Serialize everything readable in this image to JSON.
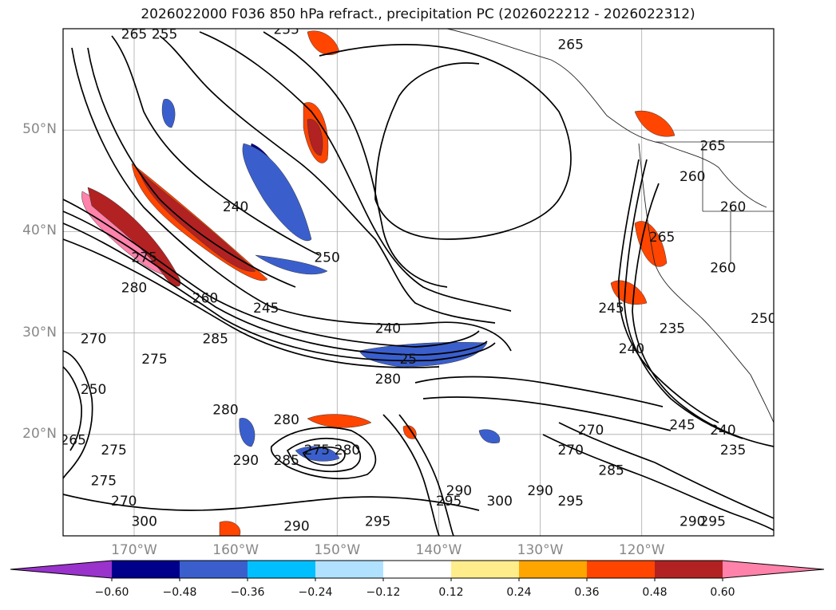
{
  "title": "2026022000 F036 850 hPa refract., precipitation PC (2026022212 - 2026022312)",
  "chart_data": {
    "type": "contour-map",
    "title": "2026022000 F036 850 hPa refract., precipitation PC (2026022212 - 2026022312)",
    "lon_ticks": [
      "170°W",
      "160°W",
      "150°W",
      "140°W",
      "130°W",
      "120°W"
    ],
    "lat_ticks": [
      "50°N",
      "40°N",
      "30°N",
      "20°N"
    ],
    "lon_range": [
      -177,
      -107
    ],
    "lat_range": [
      10,
      60
    ],
    "grid": true,
    "colorbar": {
      "boundaries": [
        -0.6,
        -0.48,
        -0.36,
        -0.24,
        -0.12,
        0.12,
        0.24,
        0.36,
        0.48,
        0.6
      ],
      "labels": [
        "−0.60",
        "−0.48",
        "−0.36",
        "−0.24",
        "−0.12",
        "0.12",
        "0.24",
        "0.36",
        "0.48",
        "0.60"
      ],
      "colors": [
        "#9933cc",
        "#00008b",
        "#3a5fcd",
        "#00bfff",
        "#b0e2ff",
        "#ffffff",
        "#ffec8b",
        "#ffa500",
        "#ff4500",
        "#b22222",
        "#ff82ab"
      ],
      "extend": "both"
    },
    "contour_labels": [
      {
        "text": "265",
        "lon": -170,
        "lat": 59
      },
      {
        "text": "255",
        "lon": -167,
        "lat": 59
      },
      {
        "text": "255",
        "lon": -155,
        "lat": 59.5
      },
      {
        "text": "265",
        "lon": -127,
        "lat": 58
      },
      {
        "text": "240",
        "lon": -160,
        "lat": 42
      },
      {
        "text": "250",
        "lon": -151,
        "lat": 37
      },
      {
        "text": "265",
        "lon": -113,
        "lat": 48
      },
      {
        "text": "260",
        "lon": -115,
        "lat": 45
      },
      {
        "text": "260",
        "lon": -111,
        "lat": 42
      },
      {
        "text": "265",
        "lon": -118,
        "lat": 39
      },
      {
        "text": "260",
        "lon": -112,
        "lat": 36
      },
      {
        "text": "270",
        "lon": -174,
        "lat": 29
      },
      {
        "text": "280",
        "lon": -170,
        "lat": 34
      },
      {
        "text": "275",
        "lon": -169,
        "lat": 37
      },
      {
        "text": "260",
        "lon": -163,
        "lat": 33
      },
      {
        "text": "245",
        "lon": -157,
        "lat": 32
      },
      {
        "text": "285",
        "lon": -162,
        "lat": 29
      },
      {
        "text": "275",
        "lon": -168,
        "lat": 27
      },
      {
        "text": "240",
        "lon": -145,
        "lat": 30
      },
      {
        "text": "280",
        "lon": -145,
        "lat": 25
      },
      {
        "text": "280",
        "lon": -161,
        "lat": 22
      },
      {
        "text": "280",
        "lon": -155,
        "lat": 21
      },
      {
        "text": "250",
        "lon": -174,
        "lat": 24
      },
      {
        "text": "265",
        "lon": -176,
        "lat": 19
      },
      {
        "text": "275",
        "lon": -172,
        "lat": 18
      },
      {
        "text": "275",
        "lon": -173,
        "lat": 15
      },
      {
        "text": "270",
        "lon": -171,
        "lat": 13
      },
      {
        "text": "290",
        "lon": -159,
        "lat": 17
      },
      {
        "text": "285",
        "lon": -155,
        "lat": 17
      },
      {
        "text": "275",
        "lon": -152,
        "lat": 18
      },
      {
        "text": "280",
        "lon": -149,
        "lat": 18
      },
      {
        "text": "300",
        "lon": -169,
        "lat": 11
      },
      {
        "text": "290",
        "lon": -154,
        "lat": 10.5
      },
      {
        "text": "295",
        "lon": -146,
        "lat": 11
      },
      {
        "text": "295",
        "lon": -139,
        "lat": 13
      },
      {
        "text": "290",
        "lon": -138,
        "lat": 14
      },
      {
        "text": "300",
        "lon": -134,
        "lat": 13
      },
      {
        "text": "290",
        "lon": -130,
        "lat": 14
      },
      {
        "text": "295",
        "lon": -127,
        "lat": 13
      },
      {
        "text": "285",
        "lon": -123,
        "lat": 16
      },
      {
        "text": "270",
        "lon": -125,
        "lat": 20
      },
      {
        "text": "270",
        "lon": -127,
        "lat": 18
      },
      {
        "text": "245",
        "lon": -123,
        "lat": 32
      },
      {
        "text": "240",
        "lon": -121,
        "lat": 28
      },
      {
        "text": "235",
        "lon": -117,
        "lat": 30
      },
      {
        "text": "245",
        "lon": -116,
        "lat": 20.5
      },
      {
        "text": "240",
        "lon": -112,
        "lat": 20
      },
      {
        "text": "235",
        "lon": -111,
        "lat": 18
      },
      {
        "text": "250",
        "lon": -108,
        "lat": 31
      },
      {
        "text": "290",
        "lon": -115,
        "lat": 11
      },
      {
        "text": "295",
        "lon": -113,
        "lat": 11
      },
      {
        "text": "25",
        "lon": -143,
        "lat": 27
      }
    ]
  }
}
